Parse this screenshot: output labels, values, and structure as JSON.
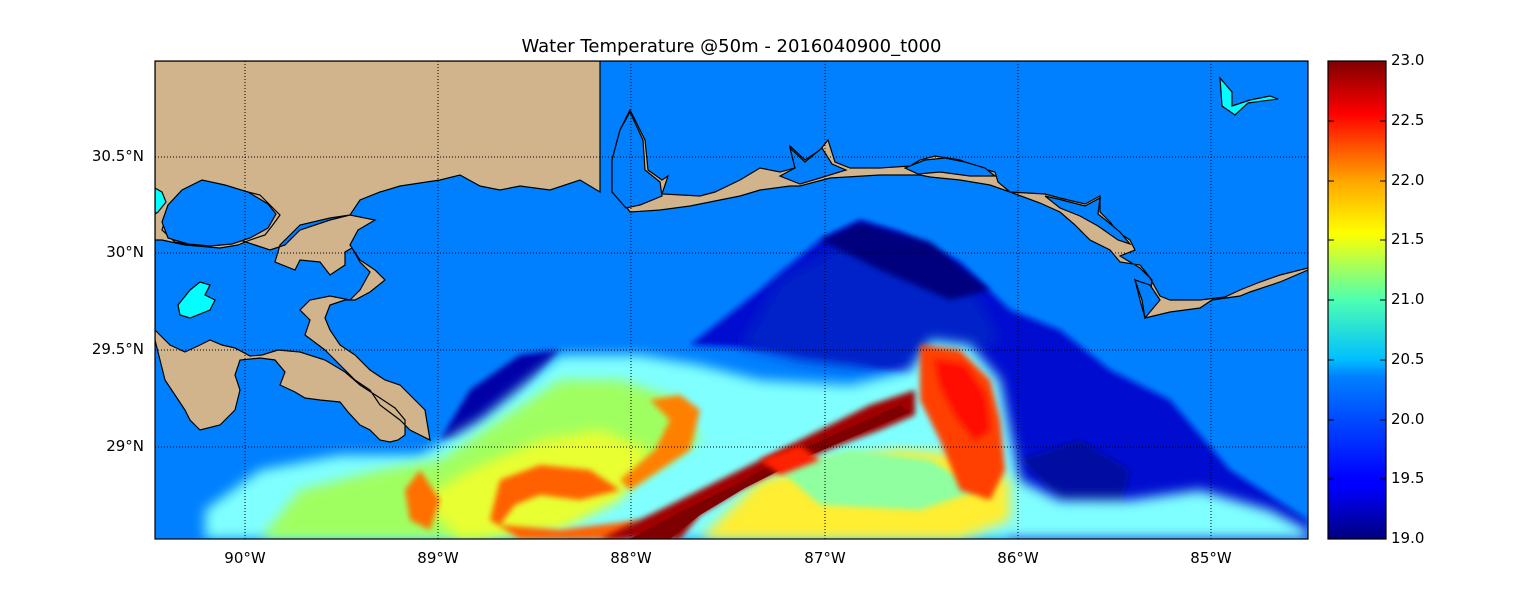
{
  "title": "Water Temperature @50m - 2016040900_t000",
  "map": {
    "lon_range": [
      -90.5,
      -84.5
    ],
    "lat_range": [
      28.55,
      31.0
    ],
    "lat_ticks": [
      "30.5°N",
      "30°N",
      "29.5°N",
      "29°N"
    ],
    "lon_ticks": [
      "90°W",
      "89°W",
      "88°W",
      "87°W",
      "86°W",
      "85°W"
    ],
    "grid": true,
    "colors": {
      "land": "#d2b48c",
      "masked_water": "#0080ff",
      "lake": "#00ffff"
    }
  },
  "colorbar": {
    "ticks": [
      "23.0",
      "22.5",
      "22.0",
      "21.5",
      "21.0",
      "20.5",
      "20.0",
      "19.5",
      "19.0"
    ],
    "range": [
      19.0,
      23.0
    ],
    "colormap": "jet"
  }
}
